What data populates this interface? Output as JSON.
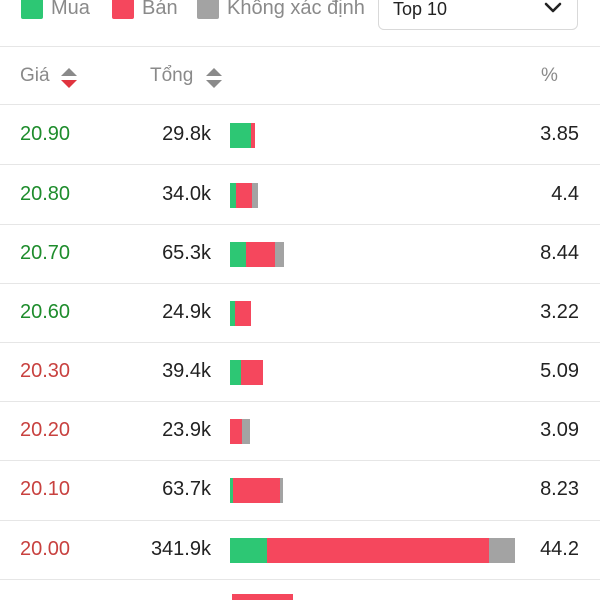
{
  "legend": {
    "buy_label": "Mua",
    "sell_label": "Bán",
    "unknown_label": "Không xác định",
    "buy_color": "#2dc774",
    "sell_color": "#f5475d",
    "unknown_color": "#a3a3a3"
  },
  "filter": {
    "selected": "Top 10"
  },
  "columns": {
    "price": "Giá",
    "total": "Tổng",
    "percent": "%"
  },
  "colors": {
    "up": "#1e8c2c",
    "down": "#c8413f"
  },
  "rows": [
    {
      "price": "20.90",
      "total": "29.8k",
      "percent": "3.85",
      "trend": "up",
      "buy": 0.85,
      "sell": 0.15,
      "unknown": 0.0
    },
    {
      "price": "20.80",
      "total": "34.0k",
      "percent": "4.4",
      "trend": "up",
      "buy": 0.22,
      "sell": 0.57,
      "unknown": 0.21
    },
    {
      "price": "20.70",
      "total": "65.3k",
      "percent": "8.44",
      "trend": "up",
      "buy": 0.3,
      "sell": 0.52,
      "unknown": 0.18
    },
    {
      "price": "20.60",
      "total": "24.9k",
      "percent": "3.22",
      "trend": "up",
      "buy": 0.25,
      "sell": 0.75,
      "unknown": 0.0
    },
    {
      "price": "20.30",
      "total": "39.4k",
      "percent": "5.09",
      "trend": "down",
      "buy": 0.33,
      "sell": 0.67,
      "unknown": 0.0
    },
    {
      "price": "20.20",
      "total": "23.9k",
      "percent": "3.09",
      "trend": "down",
      "buy": 0.0,
      "sell": 0.6,
      "unknown": 0.4
    },
    {
      "price": "20.10",
      "total": "63.7k",
      "percent": "8.23",
      "trend": "down",
      "buy": 0.06,
      "sell": 0.88,
      "unknown": 0.06
    },
    {
      "price": "20.00",
      "total": "341.9k",
      "percent": "44.2",
      "trend": "down",
      "buy": 0.13,
      "sell": 0.78,
      "unknown": 0.09
    }
  ]
}
